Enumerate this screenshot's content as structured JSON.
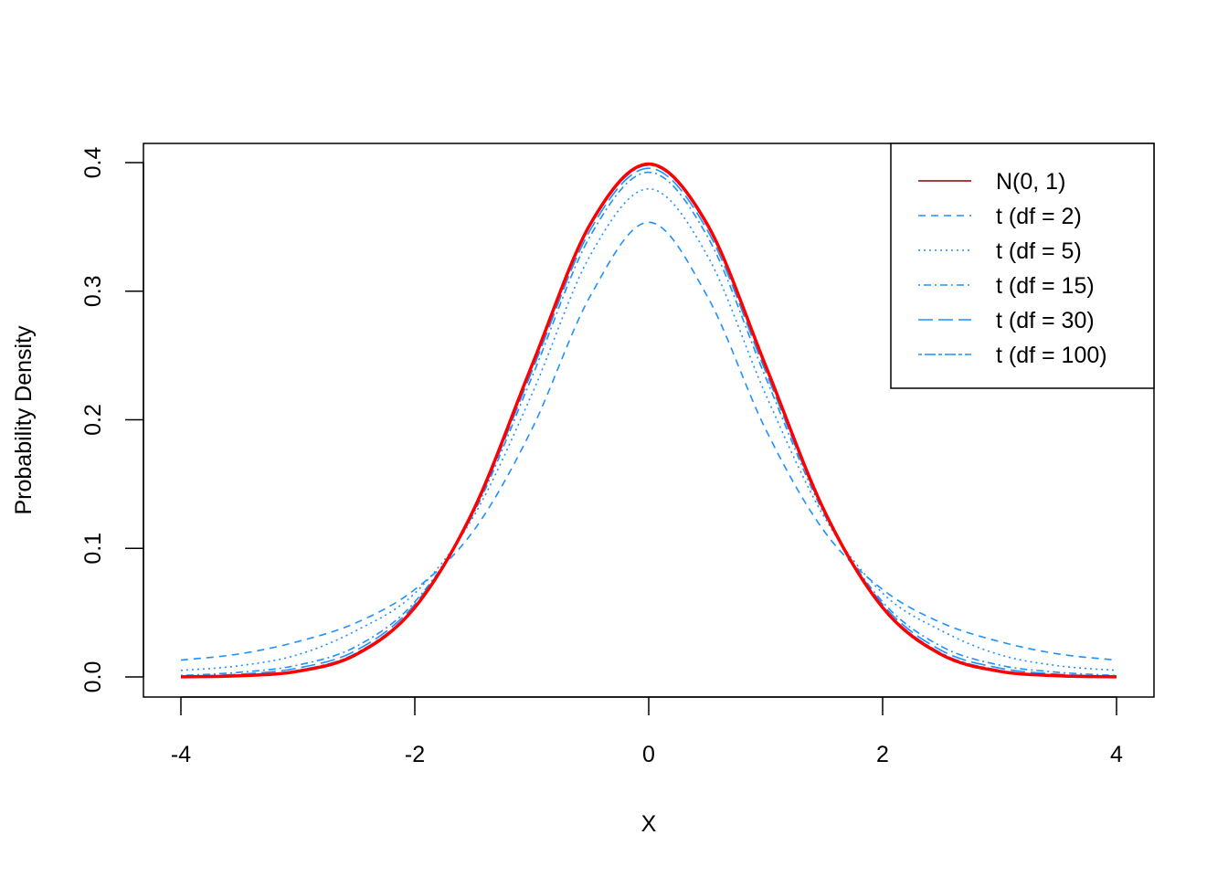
{
  "chart_data": {
    "type": "line",
    "xlabel": "X",
    "ylabel": "Probability Density",
    "xlim": [
      -4,
      4
    ],
    "ylim": [
      0,
      0.4
    ],
    "x_ticks": [
      "-4",
      "-2",
      "0",
      "2",
      "4"
    ],
    "y_ticks": [
      "0.0",
      "0.1",
      "0.2",
      "0.3",
      "0.4"
    ],
    "grid": false,
    "legend_position": "top-right",
    "x": [
      -4,
      -3.5,
      -3,
      -2.5,
      -2,
      -1.5,
      -1,
      -0.5,
      0,
      0.5,
      1,
      1.5,
      2,
      2.5,
      3,
      3.5,
      4
    ],
    "series": [
      {
        "name": "N(0, 1)",
        "color": "#ff0000",
        "legend_color": "#8b0000",
        "dash": "solid",
        "values": [
          0.0001,
          0.0009,
          0.0044,
          0.0175,
          0.054,
          0.1295,
          0.242,
          0.3521,
          0.3989,
          0.3521,
          0.242,
          0.1295,
          0.054,
          0.0175,
          0.0044,
          0.0009,
          0.0001
        ]
      },
      {
        "name": "t (df = 2)",
        "color": "#1e90ff",
        "dash": "dashed",
        "values": [
          0.0131,
          0.0179,
          0.0275,
          0.0422,
          0.068,
          0.1134,
          0.1925,
          0.2962,
          0.3536,
          0.2962,
          0.1925,
          0.1134,
          0.068,
          0.0422,
          0.0275,
          0.0179,
          0.0131
        ]
      },
      {
        "name": "t (df = 5)",
        "color": "#1e90ff",
        "dash": "dotted",
        "values": [
          0.0051,
          0.0087,
          0.0173,
          0.0361,
          0.0651,
          0.1245,
          0.2197,
          0.3279,
          0.3796,
          0.3279,
          0.2197,
          0.1245,
          0.0651,
          0.0361,
          0.0173,
          0.0087,
          0.0051
        ]
      },
      {
        "name": "t (df = 15)",
        "color": "#1e90ff",
        "dash": "dotdash",
        "values": [
          0.0011,
          0.0036,
          0.0092,
          0.0238,
          0.0584,
          0.1267,
          0.2329,
          0.3429,
          0.3925,
          0.3429,
          0.2329,
          0.1267,
          0.0584,
          0.0238,
          0.0092,
          0.0036,
          0.0011
        ]
      },
      {
        "name": "t (df = 30)",
        "color": "#1e90ff",
        "dash": "longdash",
        "values": [
          0.0005,
          0.0021,
          0.0069,
          0.0207,
          0.0565,
          0.1282,
          0.2374,
          0.3476,
          0.3956,
          0.3476,
          0.2374,
          0.1282,
          0.0565,
          0.0207,
          0.0069,
          0.0021,
          0.0005
        ]
      },
      {
        "name": "t (df = 100)",
        "color": "#1e90ff",
        "dash": "twodash",
        "values": [
          0.0002,
          0.0013,
          0.0052,
          0.0186,
          0.0549,
          0.129,
          0.2406,
          0.3507,
          0.3979,
          0.3507,
          0.2406,
          0.129,
          0.0549,
          0.0186,
          0.0052,
          0.0013,
          0.0002
        ]
      }
    ]
  }
}
